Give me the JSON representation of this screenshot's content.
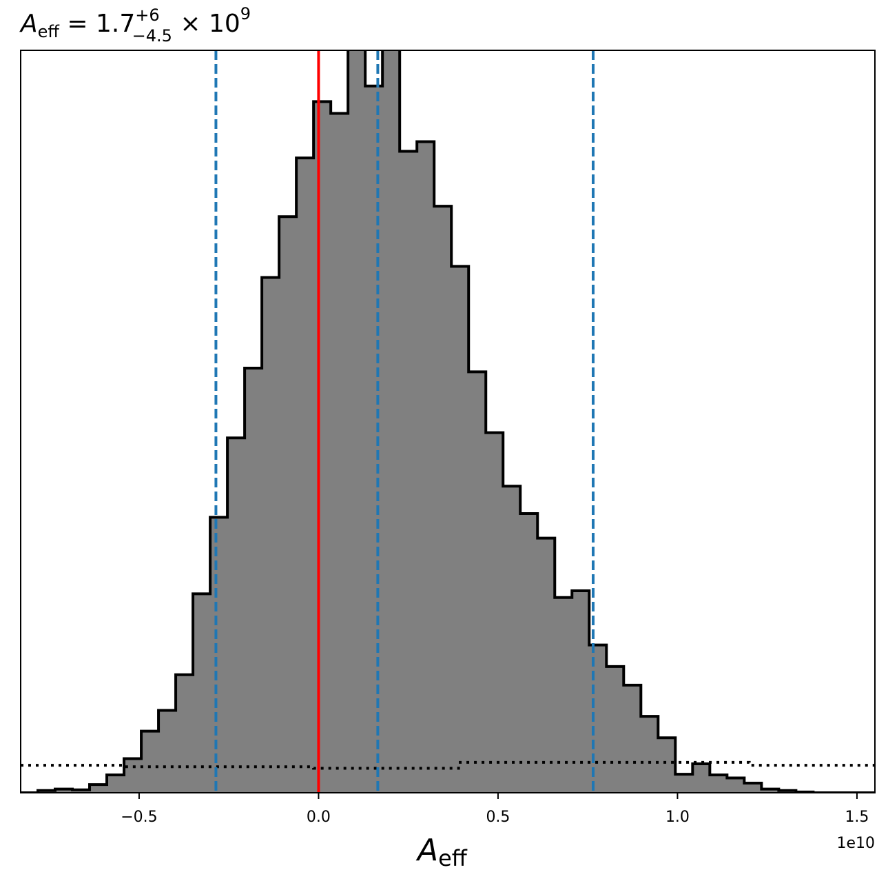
{
  "chart_data": {
    "type": "histogram",
    "title": {
      "symbol": "A",
      "subscript": "eff",
      "equals": " = 1.7",
      "upper": "+6",
      "lower": "−4.5",
      "times": " × 10",
      "exponent": "9"
    },
    "xlabel": {
      "symbol": "A",
      "subscript": "eff"
    },
    "ylabel": "",
    "x_offset_label": "1e10",
    "xlim": [
      -0.83,
      1.55
    ],
    "ylim": [
      0,
      1
    ],
    "x_ticks": [
      {
        "value": -0.5,
        "label": "−0.5"
      },
      {
        "value": 0.0,
        "label": "0.0"
      },
      {
        "value": 0.5,
        "label": "0.5"
      },
      {
        "value": 1.0,
        "label": "1.0"
      },
      {
        "value": 1.5,
        "label": "1.5"
      }
    ],
    "y_ticks": [],
    "grid": false,
    "histogram": {
      "fill_color": "#808080",
      "edge_color": "#000000",
      "bin_edges": [
        -0.83,
        -0.782,
        -0.734,
        -0.686,
        -0.638,
        -0.59,
        -0.542,
        -0.494,
        -0.446,
        -0.398,
        -0.35,
        -0.302,
        -0.254,
        -0.206,
        -0.158,
        -0.11,
        -0.062,
        -0.014,
        0.034,
        0.082,
        0.13,
        0.178,
        0.226,
        0.274,
        0.322,
        0.37,
        0.418,
        0.466,
        0.514,
        0.562,
        0.61,
        0.658,
        0.706,
        0.754,
        0.802,
        0.85,
        0.898,
        0.946,
        0.994,
        1.042,
        1.09,
        1.138,
        1.186,
        1.234,
        1.282,
        1.33,
        1.378,
        1.426,
        1.474,
        1.522,
        1.55
      ],
      "counts": [
        0.0,
        0.003,
        0.005,
        0.004,
        0.011,
        0.024,
        0.046,
        0.083,
        0.111,
        0.159,
        0.268,
        0.371,
        0.478,
        0.572,
        0.694,
        0.776,
        0.855,
        0.931,
        0.915,
        1.02,
        0.952,
        1.02,
        0.864,
        0.877,
        0.79,
        0.709,
        0.567,
        0.485,
        0.413,
        0.376,
        0.343,
        0.263,
        0.272,
        0.199,
        0.17,
        0.145,
        0.103,
        0.074,
        0.025,
        0.039,
        0.024,
        0.02,
        0.013,
        0.005,
        0.003,
        0.001,
        0.0,
        0.0,
        0.0,
        0.0
      ]
    },
    "prior": {
      "style": "dotted",
      "color": "#000000",
      "steps": [
        {
          "x0": -0.83,
          "x1": -0.542,
          "y": 0.037
        },
        {
          "x0": -0.542,
          "x1": -0.014,
          "y": 0.035
        },
        {
          "x0": -0.014,
          "x1": 0.39,
          "y": 0.033
        },
        {
          "x0": 0.39,
          "x1": 1.2,
          "y": 0.041
        },
        {
          "x0": 1.2,
          "x1": 1.55,
          "y": 0.037
        }
      ]
    },
    "vlines": [
      {
        "x": -0.286,
        "color": "#1f77b4",
        "style": "dashed"
      },
      {
        "x": 0.165,
        "color": "#1f77b4",
        "style": "dashed"
      },
      {
        "x": 0.765,
        "color": "#1f77b4",
        "style": "dashed"
      },
      {
        "x": 0.0,
        "color": "#ff0000",
        "style": "solid"
      }
    ]
  }
}
